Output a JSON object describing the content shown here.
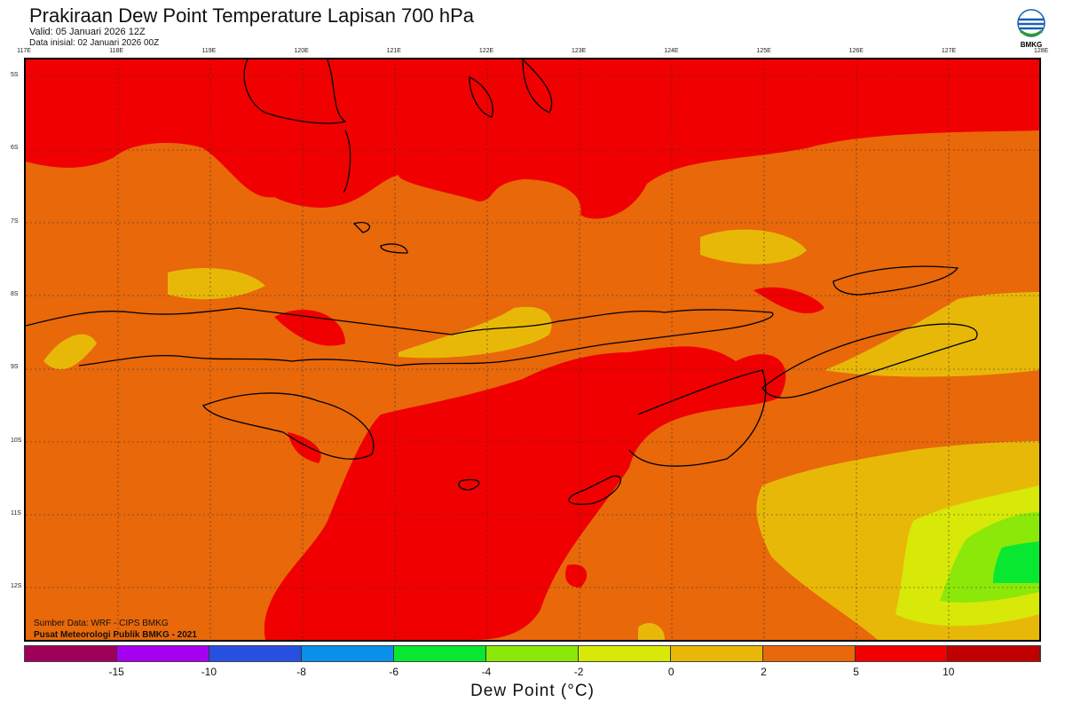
{
  "title": "Prakiraan Dew Point Temperature Lapisan 700 hPa",
  "valid": "Valid: 05 Januari 2026 12Z",
  "init": "Data inisial: 02 Januari 2026 00Z",
  "logo_text": "BMKG",
  "lon_ticks": [
    "117E",
    "118E",
    "119E",
    "120E",
    "121E",
    "122E",
    "123E",
    "124E",
    "125E",
    "126E",
    "127E",
    "128E"
  ],
  "lat_ticks": [
    "5S",
    "6S",
    "7S",
    "8S",
    "9S",
    "10S",
    "11S",
    "12S"
  ],
  "credit_source": "Sumber Data: WRF - CIPS BMKG",
  "credit_org": "Pusat Meteorologi Publik BMKG - 2021",
  "colorbar": {
    "colors": [
      "#a0005a",
      "#a600f0",
      "#2850e0",
      "#0890ea",
      "#08e830",
      "#8ce808",
      "#d8e808",
      "#e8b808",
      "#e8680a",
      "#f00000",
      "#c00000"
    ],
    "ticks": [
      "-15",
      "-10",
      "-8",
      "-6",
      "-4",
      "-2",
      "0",
      "2",
      "5",
      "10"
    ],
    "label": "Dew Point (°C)"
  }
}
